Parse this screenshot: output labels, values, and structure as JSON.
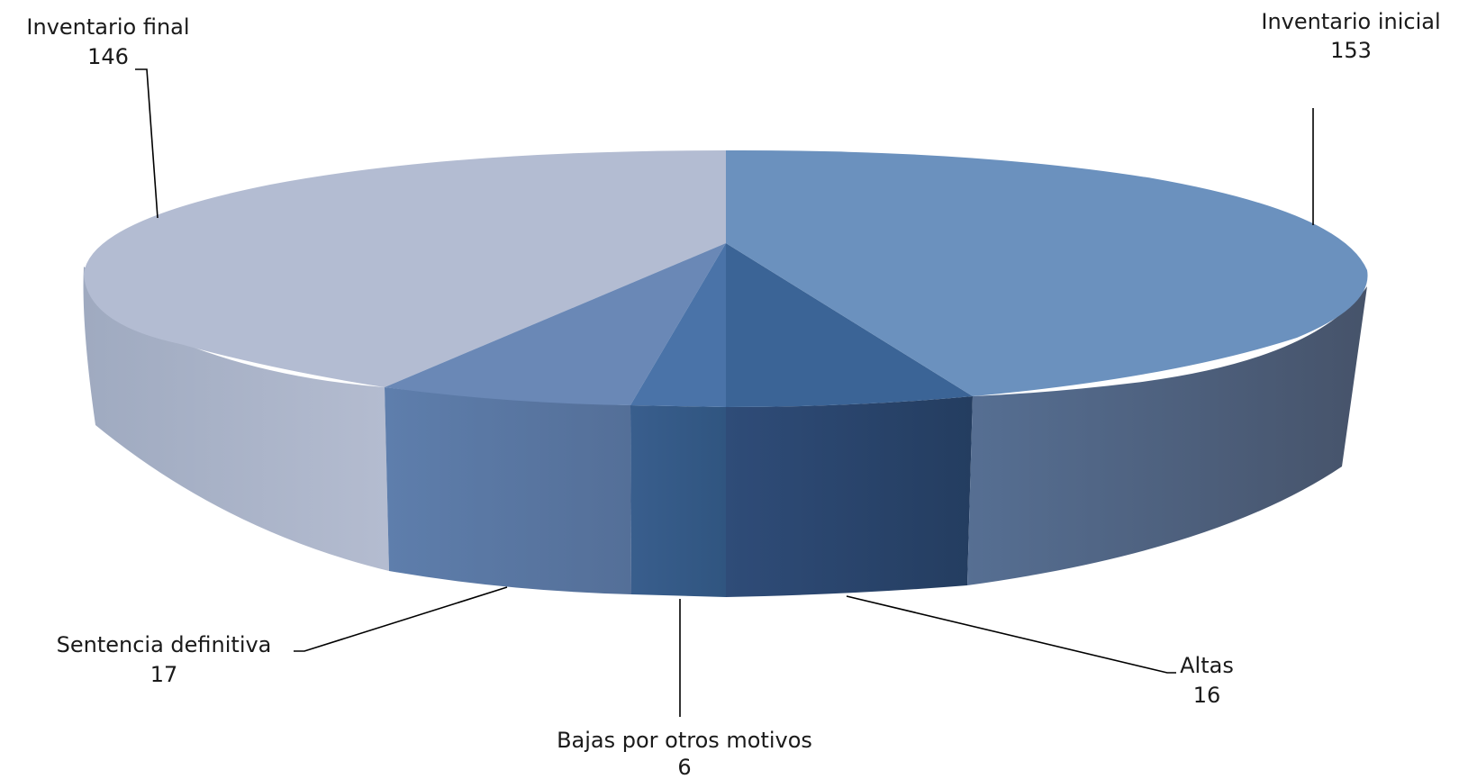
{
  "chart_data": {
    "type": "pie",
    "style": "3d",
    "slices": [
      {
        "label": "Inventario inicial",
        "value": 153,
        "color": "#6B91BE"
      },
      {
        "label": "Altas",
        "value": 16,
        "color": "#3B6496"
      },
      {
        "label": "Bajas por otros motivos",
        "value": 6,
        "color": "#4A73A8"
      },
      {
        "label": "Sentencia definitiva",
        "value": 17,
        "color": "#6A88B6"
      },
      {
        "label": "Inventario final",
        "value": 146,
        "color": "#B3BCD2"
      }
    ],
    "legend": "none",
    "data_labels": "outside-with-leader-lines"
  }
}
